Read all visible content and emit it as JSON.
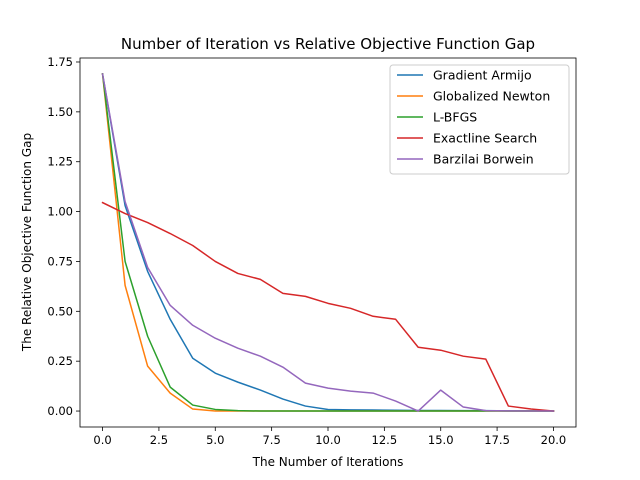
{
  "chart_data": {
    "type": "line",
    "title": "Number of Iteration vs Relative Objective Function Gap",
    "xlabel": "The Number of Iterations",
    "ylabel": "The Relative Objective Function Gap",
    "xlim": [
      -1.0,
      21.0
    ],
    "ylim": [
      -0.08,
      1.77
    ],
    "xticks": [
      0.0,
      2.5,
      5.0,
      7.5,
      10.0,
      12.5,
      15.0,
      17.5,
      20.0
    ],
    "xtick_labels": [
      "0.0",
      "2.5",
      "5.0",
      "7.5",
      "10.0",
      "12.5",
      "15.0",
      "17.5",
      "20.0"
    ],
    "yticks": [
      0.0,
      0.25,
      0.5,
      0.75,
      1.0,
      1.25,
      1.5,
      1.75
    ],
    "ytick_labels": [
      "0.00",
      "0.25",
      "0.50",
      "0.75",
      "1.00",
      "1.25",
      "1.50",
      "1.75"
    ],
    "grid": false,
    "legend_position": "top-right",
    "x": [
      0,
      1,
      2,
      3,
      4,
      5,
      6,
      7,
      8,
      9,
      10,
      11,
      12,
      13,
      14,
      15,
      16,
      17,
      18,
      19,
      20
    ],
    "series": [
      {
        "name": "Gradient Armijo",
        "color": "#1f77b4",
        "values": [
          1.69,
          1.03,
          0.7,
          0.46,
          0.265,
          0.19,
          0.145,
          0.105,
          0.06,
          0.025,
          0.008,
          0.006,
          0.005,
          0.004,
          0.003,
          0.003,
          0.002,
          0.002,
          0.001,
          0.001,
          0.0
        ]
      },
      {
        "name": "Globalized Newton",
        "color": "#ff7f0e",
        "values": [
          1.69,
          0.63,
          0.225,
          0.09,
          0.01,
          0.0,
          0.0,
          0.0,
          0.0,
          0.0,
          0.0,
          0.0,
          0.0,
          0.0,
          0.0,
          0.0,
          0.0,
          0.0,
          0.0,
          0.0,
          0.0
        ]
      },
      {
        "name": "L-BFGS",
        "color": "#2ca02c",
        "values": [
          1.69,
          0.75,
          0.375,
          0.12,
          0.03,
          0.008,
          0.002,
          0.0,
          0.0,
          0.0,
          0.0,
          0.0,
          0.0,
          0.0,
          0.0,
          0.0,
          0.0,
          0.0,
          0.0,
          0.0,
          0.0
        ]
      },
      {
        "name": "Exactline Search",
        "color": "#d62728",
        "values": [
          1.045,
          0.99,
          0.945,
          0.89,
          0.83,
          0.75,
          0.69,
          0.66,
          0.59,
          0.575,
          0.54,
          0.515,
          0.475,
          0.46,
          0.32,
          0.305,
          0.275,
          0.26,
          0.025,
          0.01,
          0.0
        ]
      },
      {
        "name": "Barzilai Borwein",
        "color": "#9467bd",
        "values": [
          1.69,
          1.05,
          0.72,
          0.53,
          0.43,
          0.365,
          0.315,
          0.275,
          0.22,
          0.14,
          0.115,
          0.1,
          0.09,
          0.05,
          0.0,
          0.105,
          0.02,
          0.002,
          0.001,
          0.0,
          0.0
        ]
      }
    ]
  }
}
